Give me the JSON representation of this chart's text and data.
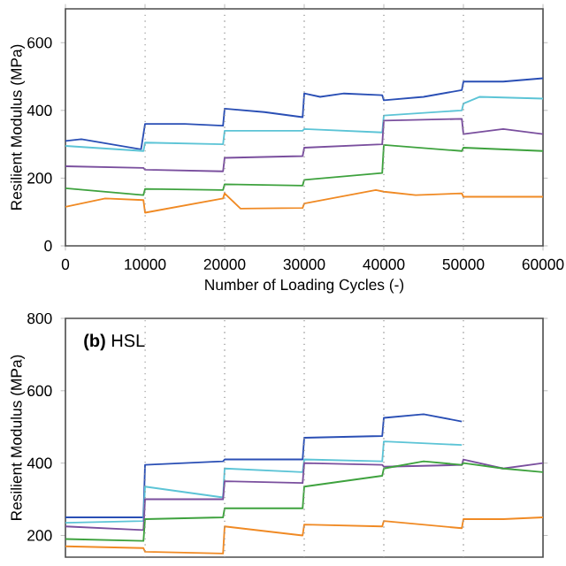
{
  "chart_data": [
    {
      "type": "line",
      "xlabel": "Number of Loading Cycles (-)",
      "ylabel": "Resilient Modulus (MPa)",
      "xlim": [
        0,
        60000
      ],
      "xticks": [
        0,
        10000,
        20000,
        30000,
        40000,
        50000,
        60000
      ],
      "ylim": [
        0,
        700
      ],
      "yticks": [
        0,
        200,
        400,
        600
      ],
      "grid": false,
      "marker": "none",
      "line_style": "solid",
      "ref_lines": [
        {
          "axis": "x",
          "value": 10000,
          "color": "#999999",
          "line_style": "dotted"
        },
        {
          "axis": "x",
          "value": 20000,
          "color": "#999999",
          "line_style": "dotted"
        },
        {
          "axis": "x",
          "value": 30000,
          "color": "#999999",
          "line_style": "dotted"
        },
        {
          "axis": "x",
          "value": 40000,
          "color": "#999999",
          "line_style": "dotted"
        },
        {
          "axis": "x",
          "value": 50000,
          "color": "#999999",
          "line_style": "dotted"
        }
      ],
      "series": [
        {
          "color": "#2a4fb5",
          "x": [
            0,
            2000,
            9500,
            10000,
            15000,
            19800,
            20000,
            25000,
            29800,
            30000,
            32000,
            35000,
            39800,
            40000,
            45000,
            49800,
            50000,
            55000,
            60000
          ],
          "values": [
            310,
            315,
            285,
            360,
            360,
            355,
            405,
            395,
            380,
            450,
            440,
            450,
            445,
            430,
            440,
            460,
            485,
            485,
            495
          ]
        },
        {
          "color": "#5cc4d6",
          "x": [
            0,
            9800,
            10000,
            19800,
            20000,
            29800,
            30000,
            39800,
            40000,
            49800,
            50000,
            52000,
            60000
          ],
          "values": [
            295,
            280,
            305,
            300,
            340,
            340,
            345,
            335,
            385,
            400,
            420,
            440,
            435
          ]
        },
        {
          "color": "#7a4f9e",
          "x": [
            0,
            9800,
            10000,
            19800,
            20000,
            29800,
            30000,
            39800,
            40000,
            49800,
            50000,
            55000,
            60000
          ],
          "values": [
            235,
            230,
            225,
            220,
            260,
            265,
            290,
            300,
            370,
            375,
            330,
            345,
            330
          ]
        },
        {
          "color": "#3ea23e",
          "x": [
            0,
            9800,
            10000,
            19800,
            20000,
            29800,
            30000,
            39800,
            40000,
            49800,
            50000,
            60000
          ],
          "values": [
            170,
            150,
            168,
            165,
            182,
            178,
            195,
            215,
            298,
            280,
            290,
            280
          ]
        },
        {
          "color": "#f08a24",
          "x": [
            0,
            5000,
            9800,
            10000,
            19800,
            20000,
            22000,
            29800,
            30000,
            39000,
            40000,
            44000,
            49800,
            50000,
            60000
          ],
          "values": [
            115,
            140,
            135,
            98,
            140,
            155,
            110,
            112,
            125,
            165,
            160,
            150,
            155,
            145,
            145
          ]
        }
      ]
    },
    {
      "type": "line",
      "ylabel": "Resilient Modulus (MPa)",
      "annotations": [
        "**(b)** HSL"
      ],
      "xlim": [
        0,
        60000
      ],
      "ylim": [
        140,
        800
      ],
      "yticks": [
        200,
        400,
        600,
        800
      ],
      "tick_labels": "y",
      "grid": false,
      "marker": "none",
      "line_style": "solid",
      "ref_lines": [
        {
          "axis": "x",
          "value": 10000,
          "color": "#999999",
          "line_style": "dotted"
        },
        {
          "axis": "x",
          "value": 20000,
          "color": "#999999",
          "line_style": "dotted"
        },
        {
          "axis": "x",
          "value": 30000,
          "color": "#999999",
          "line_style": "dotted"
        },
        {
          "axis": "x",
          "value": 40000,
          "color": "#999999",
          "line_style": "dotted"
        },
        {
          "axis": "x",
          "value": 50000,
          "color": "#999999",
          "line_style": "dotted"
        }
      ],
      "series": [
        {
          "color": "#2a4fb5",
          "x": [
            0,
            9800,
            10000,
            19800,
            20000,
            29800,
            30000,
            39800,
            40000,
            45000,
            49800
          ],
          "values": [
            250,
            250,
            395,
            405,
            410,
            410,
            470,
            475,
            525,
            535,
            515
          ]
        },
        {
          "color": "#5cc4d6",
          "x": [
            0,
            9800,
            10000,
            19800,
            20000,
            29800,
            30000,
            39800,
            40000,
            49800
          ],
          "values": [
            235,
            240,
            335,
            305,
            385,
            375,
            410,
            405,
            460,
            450
          ]
        },
        {
          "color": "#7a4f9e",
          "x": [
            0,
            9800,
            10000,
            19800,
            20000,
            29800,
            30000,
            39800,
            40000,
            49800,
            50000,
            55000,
            60000
          ],
          "values": [
            225,
            215,
            300,
            300,
            350,
            345,
            400,
            395,
            390,
            395,
            410,
            385,
            400
          ]
        },
        {
          "color": "#3ea23e",
          "x": [
            0,
            9800,
            10000,
            19800,
            20000,
            29800,
            30000,
            39800,
            40000,
            45000,
            49800,
            50000,
            55000,
            60000
          ],
          "values": [
            190,
            185,
            245,
            250,
            275,
            275,
            335,
            365,
            385,
            405,
            395,
            400,
            385,
            375
          ]
        },
        {
          "color": "#f08a24",
          "x": [
            0,
            9800,
            10000,
            19800,
            20000,
            29800,
            30000,
            39800,
            40000,
            49800,
            50000,
            55000,
            60000
          ],
          "values": [
            170,
            165,
            155,
            150,
            225,
            200,
            230,
            225,
            240,
            220,
            245,
            245,
            250
          ]
        }
      ]
    }
  ]
}
